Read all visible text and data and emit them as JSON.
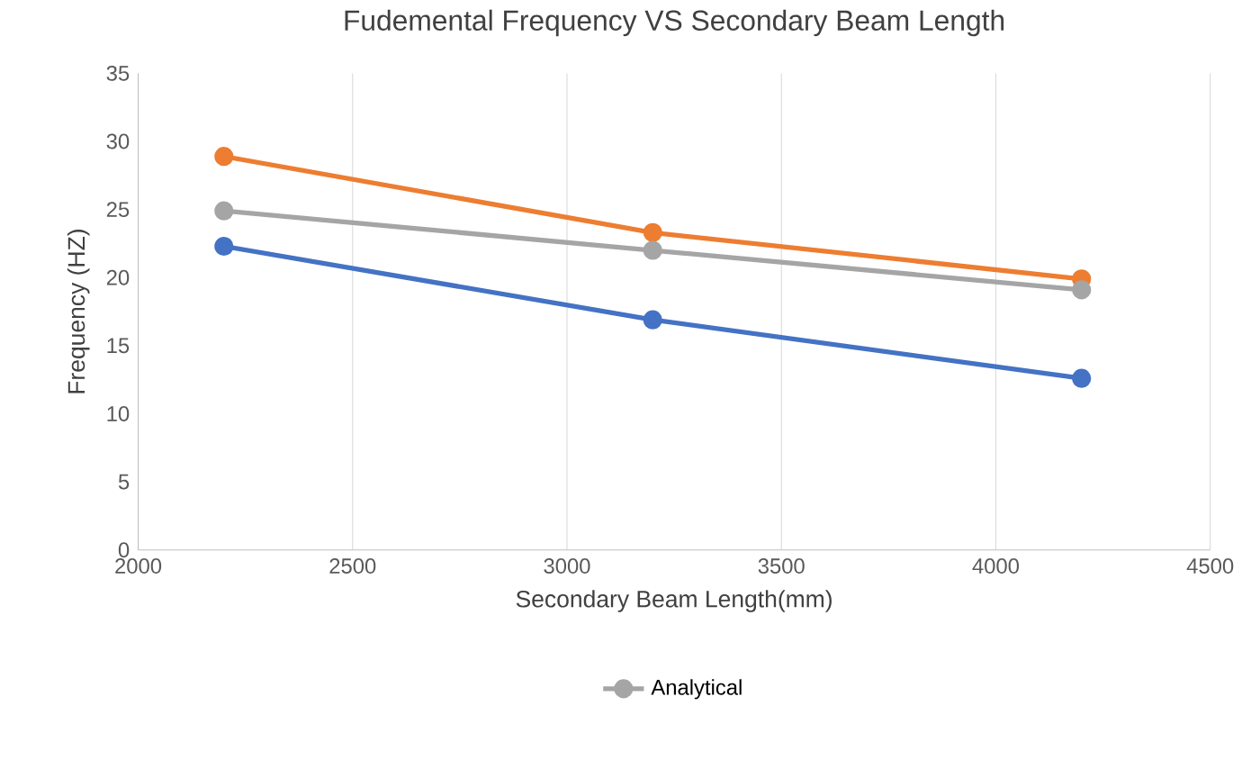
{
  "chart_data": {
    "type": "line",
    "title": "Fudemental Frequency VS Secondary Beam Length",
    "xlabel": "Secondary Beam Length(mm)",
    "ylabel": "Frequency (HZ)",
    "x": [
      2200,
      3200,
      4200
    ],
    "series": [
      {
        "color": "#4472c4",
        "values": [
          22.3,
          16.9,
          12.6
        ]
      },
      {
        "color": "#ed7d31",
        "values": [
          28.9,
          23.3,
          19.9
        ]
      },
      {
        "name": "Analytical",
        "color": "#a5a5a5",
        "values": [
          24.9,
          22.0,
          19.1
        ]
      }
    ],
    "xlim": [
      2000,
      4500
    ],
    "xticks": [
      2000,
      2500,
      3000,
      3500,
      4000,
      4500
    ],
    "ylim": [
      0,
      35
    ],
    "yticks": [
      0,
      5,
      10,
      15,
      20,
      25,
      30,
      35
    ],
    "grid": "x",
    "legend": "bottom",
    "marker": "circle",
    "line_style": "solid"
  }
}
